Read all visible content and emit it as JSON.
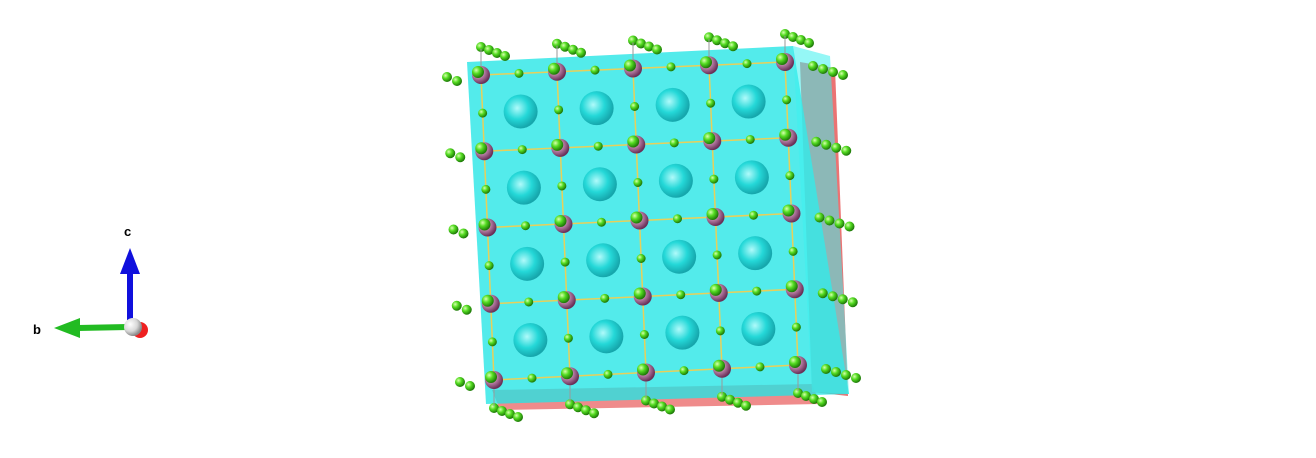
{
  "axes": {
    "c_label": "c",
    "b_label": "b"
  },
  "colors": {
    "background": "#ffffff",
    "polyhedra_face": "#22e5e5",
    "side_face": "#e85a5a",
    "chlorine_atom": "#44dd11",
    "metal_atom": "#b0709a",
    "central_atom": "#19d3d3",
    "c_axis": "#1010dd",
    "b_axis": "#22bb22",
    "a_axis": "#ee2020",
    "cell_edge": "#e8d05a"
  },
  "structure": {
    "repeat_b": 4,
    "repeat_c": 4
  }
}
